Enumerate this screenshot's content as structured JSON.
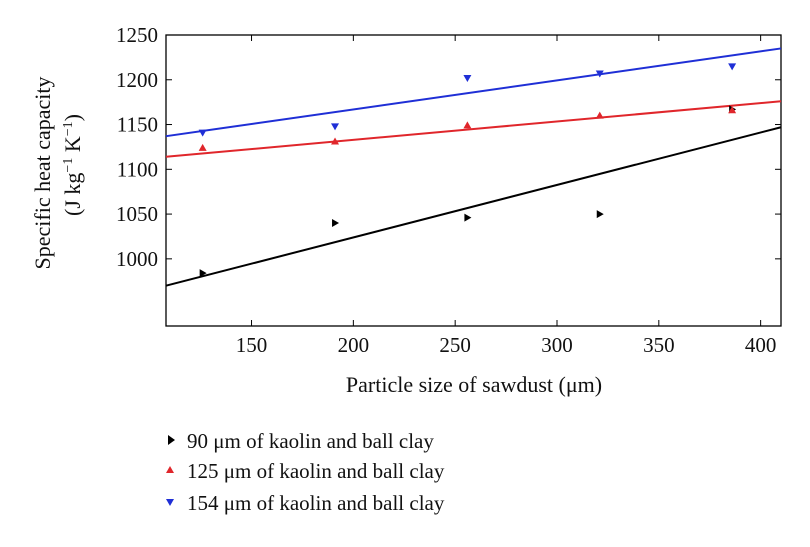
{
  "chart_data": {
    "type": "scatter",
    "xlabel": "Particle size of sawdust (μm)",
    "ylabel": "Specific heat capacity",
    "ylabel_units": {
      "open": "(J kg",
      "exp1": "−1",
      "mid": " K",
      "exp2": "−1",
      "close": ")"
    },
    "xlim": [
      108,
      410
    ],
    "ylim": [
      925,
      1250
    ],
    "x_ticks": [
      150,
      200,
      250,
      300,
      350,
      400
    ],
    "y_ticks": [
      1000,
      1050,
      1100,
      1150,
      1200,
      1250
    ],
    "grid": false,
    "legend_position": "below",
    "series": [
      {
        "name": "90 μm of kaolin and ball clay",
        "color": "#000000",
        "marker": "triangle-right",
        "points": [
          {
            "x": 126,
            "y": 984
          },
          {
            "x": 191,
            "y": 1040
          },
          {
            "x": 256,
            "y": 1046
          },
          {
            "x": 321,
            "y": 1050
          },
          {
            "x": 386,
            "y": 1167
          }
        ],
        "fit": {
          "x": [
            108,
            410
          ],
          "y": [
            970,
            1147
          ]
        }
      },
      {
        "name": "125 μm of kaolin and ball clay",
        "color": "#e0262b",
        "marker": "triangle-up",
        "points": [
          {
            "x": 126,
            "y": 1124
          },
          {
            "x": 191,
            "y": 1131
          },
          {
            "x": 256,
            "y": 1149
          },
          {
            "x": 321,
            "y": 1160
          },
          {
            "x": 386,
            "y": 1166
          }
        ],
        "fit": {
          "x": [
            108,
            410
          ],
          "y": [
            1114,
            1176
          ]
        }
      },
      {
        "name": "154 μm of kaolin and ball clay",
        "color": "#1f2fd6",
        "marker": "triangle-down",
        "points": [
          {
            "x": 126,
            "y": 1141
          },
          {
            "x": 191,
            "y": 1148
          },
          {
            "x": 256,
            "y": 1202
          },
          {
            "x": 321,
            "y": 1207
          },
          {
            "x": 386,
            "y": 1215
          }
        ],
        "fit": {
          "x": [
            108,
            410
          ],
          "y": [
            1137,
            1235
          ]
        }
      }
    ]
  }
}
